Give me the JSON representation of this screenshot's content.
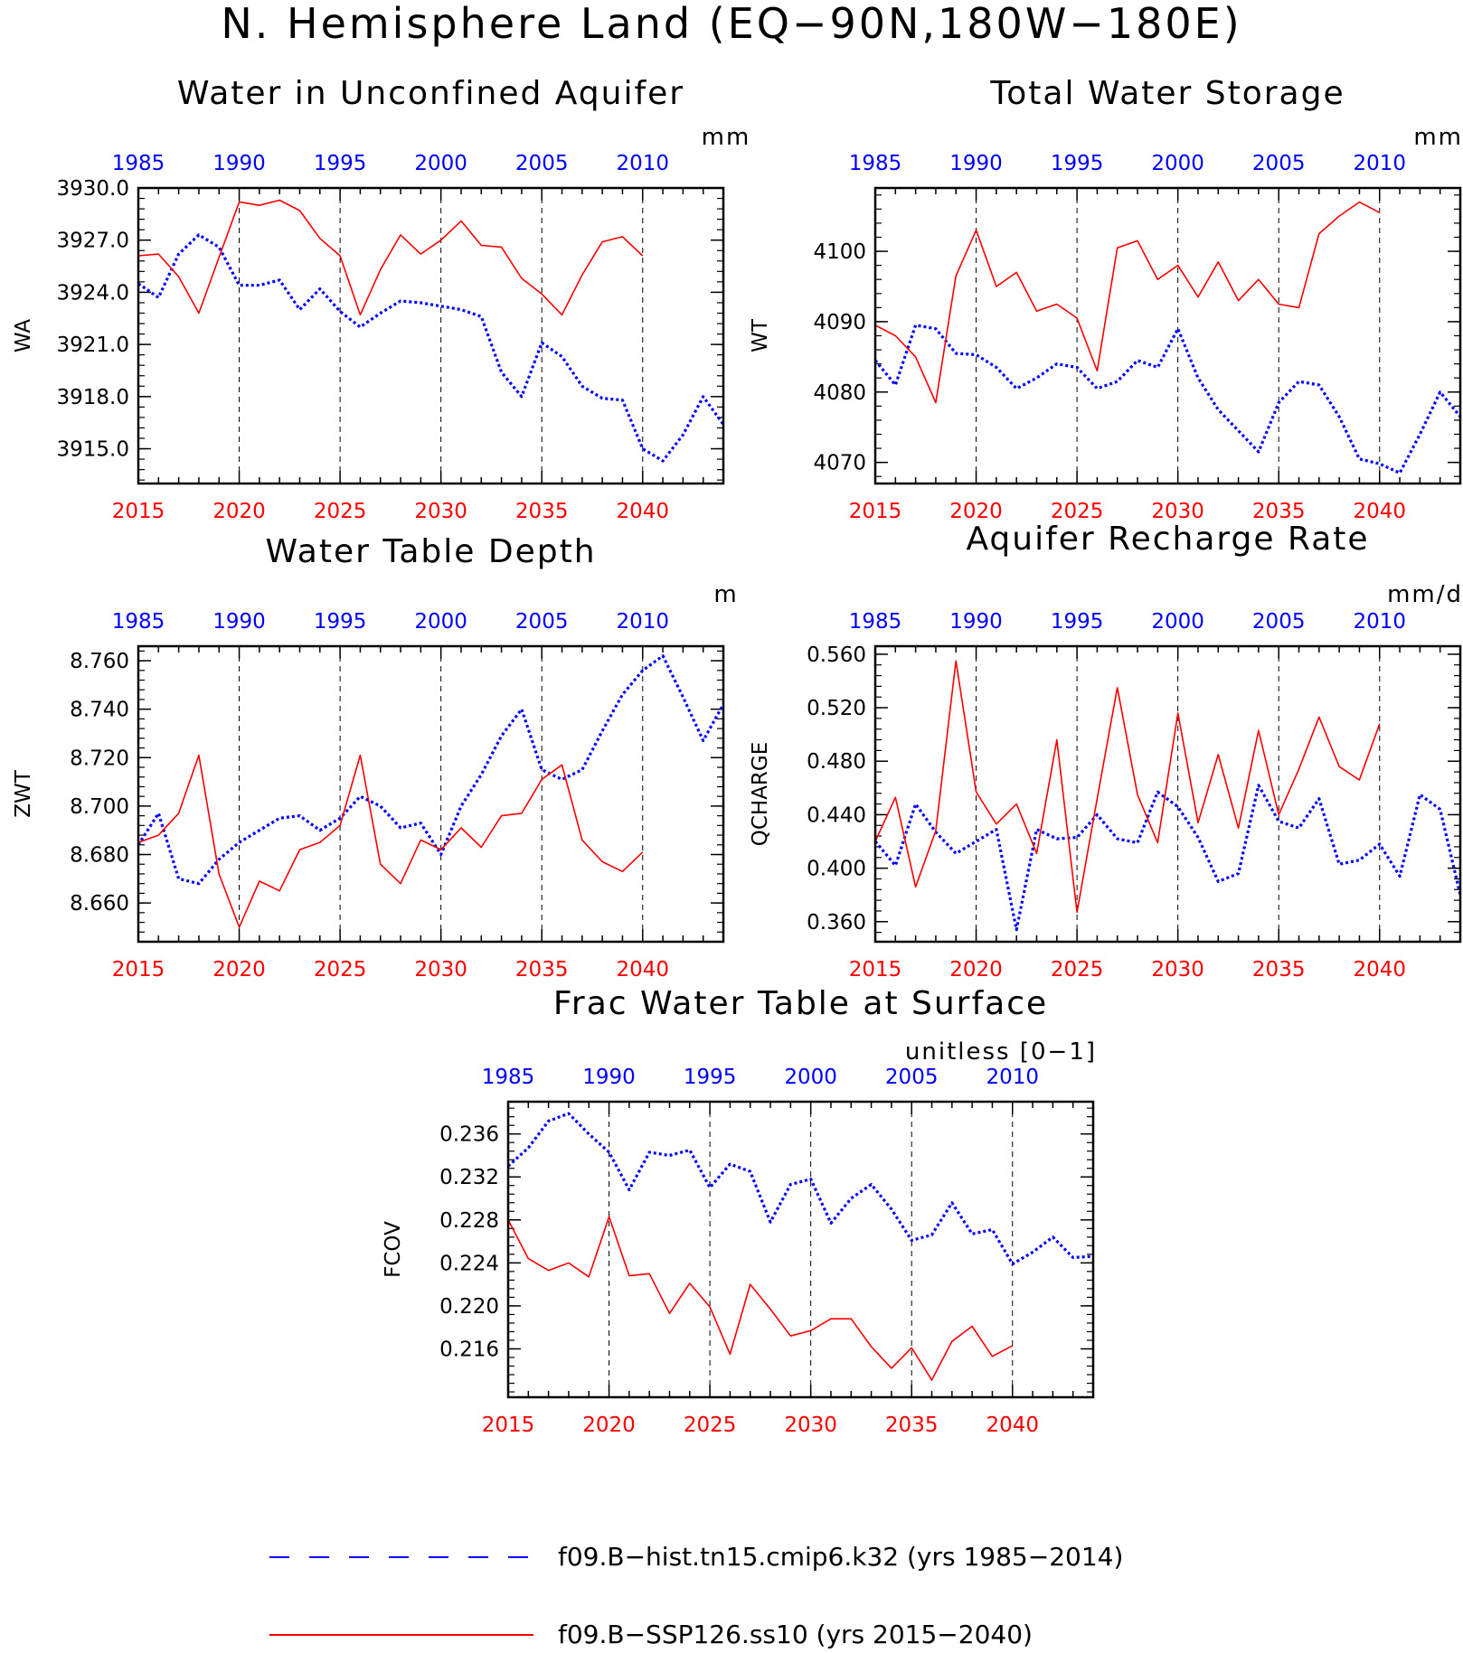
{
  "page_title": "N. Hemisphere Land (EQ−90N,180W−180E)",
  "colors": {
    "hist": "#0000ff",
    "ssp": "#ff0000",
    "axis": "#000000",
    "grid": "#000000"
  },
  "x_axes": {
    "top_labels": [
      "1985",
      "1990",
      "1995",
      "2000",
      "2005",
      "2010"
    ],
    "bottom_labels": [
      "2015",
      "2020",
      "2025",
      "2030",
      "2035",
      "2040"
    ]
  },
  "legend": {
    "hist_label": "f09.B−hist.tn15.cmip6.k32 (yrs 1985−2014)",
    "ssp_label": "f09.B−SSP126.ss10 (yrs 2015−2040)"
  },
  "chart_data": [
    {
      "type": "line",
      "title": "Water in Unconfined Aquifer",
      "ylabel": "WA",
      "units": "mm",
      "x_range": [
        2015,
        2044
      ],
      "ylim": [
        3913.0,
        3930.0
      ],
      "yticks": [
        3915.0,
        3918.0,
        3921.0,
        3924.0,
        3927.0,
        3930.0
      ],
      "ytick_labels": [
        "3915.0",
        "3918.0",
        "3921.0",
        "3924.0",
        "3927.0",
        "3930.0"
      ],
      "series": [
        {
          "name": "f09.B−hist.tn15.cmip6.k32 (yrs 1985−2014)",
          "style": "dotted",
          "x_start": 2015,
          "values": [
            3924.5,
            3923.7,
            3926.2,
            3927.3,
            3926.6,
            3924.4,
            3924.4,
            3924.7,
            3923.0,
            3924.2,
            3922.9,
            3922.0,
            3922.8,
            3923.5,
            3923.4,
            3923.2,
            3923.0,
            3922.6,
            3919.4,
            3918.0,
            3921.1,
            3920.3,
            3918.6,
            3917.9,
            3917.8,
            3915.0,
            3914.3,
            3915.8,
            3918.0,
            3916.4
          ]
        },
        {
          "name": "f09.B−SSP126.ss10 (yrs 2015−2040)",
          "style": "solid",
          "x_start": 2015,
          "values": [
            3926.1,
            3926.2,
            3924.9,
            3922.8,
            3926.0,
            3929.2,
            3929.0,
            3929.3,
            3928.7,
            3927.1,
            3926.1,
            3922.7,
            3925.3,
            3927.3,
            3926.2,
            3927.0,
            3928.1,
            3926.7,
            3926.6,
            3924.8,
            3923.9,
            3922.7,
            3925.0,
            3926.9,
            3927.2,
            3926.1
          ]
        }
      ]
    },
    {
      "type": "line",
      "title": "Total Water Storage",
      "ylabel": "WT",
      "units": "mm",
      "x_range": [
        2015,
        2044
      ],
      "ylim": [
        4067.0,
        4109.0
      ],
      "yticks": [
        4070,
        4080,
        4090,
        4100
      ],
      "ytick_labels": [
        "4070",
        "4080",
        "4090",
        "4100"
      ],
      "series": [
        {
          "name": "f09.B−hist.tn15.cmip6.k32 (yrs 1985−2014)",
          "style": "dotted",
          "x_start": 2015,
          "values": [
            4084.5,
            4081.0,
            4089.5,
            4089.0,
            4085.5,
            4085.3,
            4083.5,
            4080.5,
            4082.0,
            4084.0,
            4083.5,
            4080.5,
            4081.5,
            4084.5,
            4083.5,
            4089.0,
            4082.0,
            4077.5,
            4074.5,
            4071.5,
            4078.5,
            4081.5,
            4081.0,
            4076.5,
            4070.5,
            4069.8,
            4068.5,
            4074.0,
            4080.0,
            4076.5
          ]
        },
        {
          "name": "f09.B−SSP126.ss10 (yrs 2015−2040)",
          "style": "solid",
          "x_start": 2015,
          "values": [
            4089.5,
            4088.0,
            4085.0,
            4078.5,
            4096.5,
            4103.0,
            4095.0,
            4097.0,
            4091.5,
            4092.5,
            4090.5,
            4083.0,
            4100.5,
            4101.5,
            4096.0,
            4098.0,
            4093.5,
            4098.5,
            4093.0,
            4096.0,
            4092.5,
            4092.0,
            4102.5,
            4105.0,
            4107.0,
            4105.5
          ]
        }
      ]
    },
    {
      "type": "line",
      "title": "Water Table Depth",
      "ylabel": "ZWT",
      "units": "m",
      "x_range": [
        2015,
        2044
      ],
      "ylim": [
        8.644,
        8.766
      ],
      "yticks": [
        8.66,
        8.68,
        8.7,
        8.72,
        8.74,
        8.76
      ],
      "ytick_labels": [
        "8.660",
        "8.680",
        "8.700",
        "8.720",
        "8.740",
        "8.760"
      ],
      "series": [
        {
          "name": "f09.B−hist.tn15.cmip6.k32 (yrs 1985−2014)",
          "style": "dotted",
          "x_start": 2015,
          "values": [
            8.684,
            8.697,
            8.67,
            8.668,
            8.678,
            8.685,
            8.69,
            8.695,
            8.696,
            8.69,
            8.695,
            8.704,
            8.7,
            8.691,
            8.693,
            8.68,
            8.7,
            8.713,
            8.729,
            8.74,
            8.715,
            8.711,
            8.715,
            8.731,
            8.746,
            8.756,
            8.762,
            8.745,
            8.727,
            8.742
          ]
        },
        {
          "name": "f09.B−SSP126.ss10 (yrs 2015−2040)",
          "style": "solid",
          "x_start": 2015,
          "values": [
            8.685,
            8.688,
            8.697,
            8.721,
            8.672,
            8.65,
            8.669,
            8.665,
            8.682,
            8.685,
            8.692,
            8.721,
            8.676,
            8.668,
            8.686,
            8.682,
            8.691,
            8.683,
            8.696,
            8.697,
            8.711,
            8.717,
            8.686,
            8.677,
            8.673,
            8.681
          ]
        }
      ]
    },
    {
      "type": "line",
      "title": "Aquifer Recharge Rate",
      "ylabel": "QCHARGE",
      "units": "mm/d",
      "x_range": [
        2015,
        2044
      ],
      "ylim": [
        0.345,
        0.566
      ],
      "yticks": [
        0.36,
        0.4,
        0.44,
        0.48,
        0.52,
        0.56
      ],
      "ytick_labels": [
        "0.360",
        "0.400",
        "0.440",
        "0.480",
        "0.520",
        "0.560"
      ],
      "series": [
        {
          "name": "f09.B−hist.tn15.cmip6.k32 (yrs 1985−2014)",
          "style": "dotted",
          "x_start": 2015,
          "values": [
            0.42,
            0.402,
            0.448,
            0.427,
            0.411,
            0.42,
            0.429,
            0.354,
            0.429,
            0.422,
            0.423,
            0.44,
            0.422,
            0.419,
            0.457,
            0.446,
            0.423,
            0.39,
            0.396,
            0.462,
            0.435,
            0.43,
            0.452,
            0.403,
            0.406,
            0.418,
            0.394,
            0.455,
            0.444,
            0.38
          ]
        },
        {
          "name": "f09.B−SSP126.ss10 (yrs 2015−2040)",
          "style": "solid",
          "x_start": 2015,
          "values": [
            0.42,
            0.453,
            0.386,
            0.428,
            0.555,
            0.457,
            0.433,
            0.448,
            0.411,
            0.496,
            0.367,
            0.452,
            0.535,
            0.455,
            0.419,
            0.516,
            0.434,
            0.485,
            0.43,
            0.503,
            0.44,
            0.474,
            0.513,
            0.476,
            0.466,
            0.508
          ]
        }
      ]
    },
    {
      "type": "line",
      "title": "Frac Water Table at Surface",
      "ylabel": "FCOV",
      "units": "unitless [0−1]",
      "x_range": [
        2015,
        2044
      ],
      "ylim": [
        0.2115,
        0.239
      ],
      "yticks": [
        0.216,
        0.22,
        0.224,
        0.228,
        0.232,
        0.236
      ],
      "ytick_labels": [
        "0.216",
        "0.220",
        "0.224",
        "0.228",
        "0.232",
        "0.236"
      ],
      "series": [
        {
          "name": "f09.B−hist.tn15.cmip6.k32 (yrs 1985−2014)",
          "style": "dotted",
          "x_start": 2015,
          "values": [
            0.233,
            0.2347,
            0.2372,
            0.2379,
            0.236,
            0.2343,
            0.2308,
            0.2343,
            0.234,
            0.2345,
            0.231,
            0.2332,
            0.2325,
            0.2278,
            0.2313,
            0.2318,
            0.2277,
            0.23,
            0.2313,
            0.229,
            0.2261,
            0.2266,
            0.2296,
            0.2267,
            0.2271,
            0.2239,
            0.225,
            0.2264,
            0.2245,
            0.2246
          ]
        },
        {
          "name": "f09.B−SSP126.ss10 (yrs 2015−2040)",
          "style": "solid",
          "x_start": 2015,
          "values": [
            0.228,
            0.2244,
            0.2233,
            0.224,
            0.2227,
            0.2283,
            0.2228,
            0.223,
            0.2193,
            0.2221,
            0.2199,
            0.2155,
            0.222,
            0.2197,
            0.2172,
            0.2177,
            0.2188,
            0.2188,
            0.2162,
            0.2142,
            0.2161,
            0.2131,
            0.2167,
            0.2181,
            0.2153,
            0.2163
          ]
        }
      ]
    }
  ]
}
